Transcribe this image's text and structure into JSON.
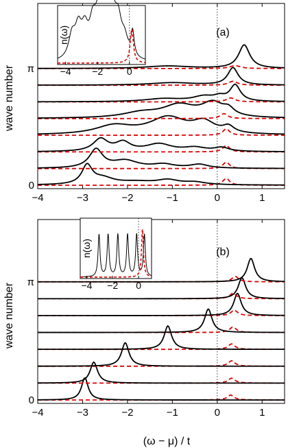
{
  "figure": {
    "ylabel": "wave number",
    "xlabel": "(ω − μ) / t"
  },
  "chart_data": [
    {
      "type": "line",
      "panel_label": "(a)",
      "xlim": [
        -4,
        1.5
      ],
      "x_ticks": [
        -4,
        -3,
        -2,
        -1,
        0,
        1
      ],
      "x_tick_labels": [
        "−4",
        "−3",
        "−2",
        "−1",
        "0",
        "1"
      ],
      "y_tick_labels": [
        "0",
        "π"
      ],
      "vertical_reference_line_x": 0,
      "colors": {
        "solid": "#000000",
        "dashed": "#e00000"
      },
      "series": [
        {
          "peaks": [
            [
              -2.9,
              0.75,
              0.14
            ],
            [
              -2.55,
              0.25,
              0.3
            ],
            [
              -1.8,
              0.12,
              0.5
            ],
            [
              -1.1,
              0.18,
              0.3
            ],
            [
              -0.5,
              0.1,
              0.3
            ]
          ],
          "dashed_peaks": [
            [
              0.2,
              0.28,
              0.09
            ]
          ]
        },
        {
          "peaks": [
            [
              -2.7,
              0.75,
              0.18
            ],
            [
              -2.05,
              0.3,
              0.35
            ],
            [
              -1.2,
              0.15,
              0.3
            ],
            [
              -0.4,
              0.15,
              0.25
            ]
          ],
          "dashed_peaks": [
            [
              0.2,
              0.26,
              0.09
            ]
          ]
        },
        {
          "peaks": [
            [
              -2.6,
              0.5,
              0.2
            ],
            [
              -2.1,
              0.35,
              0.2
            ],
            [
              -1.3,
              0.3,
              0.35
            ],
            [
              -0.5,
              0.15,
              0.3
            ],
            [
              0.1,
              0.15,
              0.2
            ]
          ],
          "dashed_peaks": [
            [
              0.2,
              0.26,
              0.09
            ]
          ]
        },
        {
          "peaks": [
            [
              -2.3,
              0.35,
              0.5
            ],
            [
              -1.1,
              0.68,
              0.5
            ],
            [
              -0.3,
              0.45,
              0.3
            ],
            [
              0.25,
              0.25,
              0.15
            ]
          ],
          "dashed_peaks": [
            [
              0.2,
              0.26,
              0.09
            ]
          ]
        },
        {
          "peaks": [
            [
              -1.7,
              0.2,
              0.5
            ],
            [
              -0.85,
              0.5,
              0.45
            ],
            [
              -0.1,
              0.55,
              0.3
            ],
            [
              0.25,
              0.25,
              0.15
            ]
          ],
          "dashed_peaks": [
            [
              0.15,
              0.2,
              0.1
            ]
          ]
        },
        {
          "peaks": [
            [
              -1.2,
              0.12,
              0.5
            ],
            [
              -0.3,
              0.2,
              0.3
            ],
            [
              0.4,
              0.65,
              0.14
            ],
            [
              0.05,
              0.15,
              0.15
            ]
          ],
          "dashed_peaks": [
            [
              0.3,
              0.16,
              0.12
            ]
          ]
        },
        {
          "peaks": [
            [
              -1.0,
              0.1,
              0.6
            ],
            [
              0.35,
              0.7,
              0.14
            ]
          ],
          "dashed_peaks": [
            [
              0.35,
              0.16,
              0.12
            ]
          ]
        },
        {
          "peaks": [
            [
              -1.1,
              0.1,
              0.6
            ],
            [
              0.6,
              0.95,
              0.15
            ]
          ],
          "dashed_peaks": [
            [
              0.4,
              0.12,
              0.14
            ]
          ]
        }
      ],
      "inset": {
        "ylabel": "n(ω)",
        "xlim": [
          -4.5,
          1.0
        ],
        "x_ticks": [
          -4,
          -2,
          0
        ],
        "x_tick_labels": [
          "−4",
          "−2",
          "0"
        ],
        "vertical_reference_line_x": 0,
        "solid_peaks": [
          [
            -3.6,
            0.4,
            0.25
          ],
          [
            -3.2,
            0.5,
            0.25
          ],
          [
            -2.8,
            0.45,
            0.25
          ],
          [
            -2.3,
            0.5,
            0.25
          ],
          [
            -1.9,
            0.65,
            0.3
          ],
          [
            -1.5,
            0.85,
            0.3
          ],
          [
            -1.1,
            0.7,
            0.3
          ],
          [
            -0.7,
            0.55,
            0.25
          ],
          [
            -0.3,
            0.3,
            0.25
          ],
          [
            0.2,
            0.45,
            0.12
          ]
        ],
        "dashed_peaks": [
          [
            0.15,
            0.62,
            0.12
          ]
        ]
      }
    },
    {
      "type": "line",
      "panel_label": "(b)",
      "xlim": [
        -4,
        1.5
      ],
      "x_ticks": [
        -4,
        -3,
        -2,
        -1,
        0,
        1
      ],
      "x_tick_labels": [
        "−4",
        "−3",
        "−2",
        "−1",
        "0",
        "1"
      ],
      "y_tick_labels": [
        "0",
        "π"
      ],
      "vertical_reference_line_x": 0,
      "colors": {
        "solid": "#000000",
        "dashed": "#e00000"
      },
      "series": [
        {
          "peaks": [
            [
              -2.95,
              0.9,
              0.09
            ]
          ],
          "dashed_peaks": [
            [
              0.3,
              0.2,
              0.09
            ]
          ]
        },
        {
          "peaks": [
            [
              -2.75,
              0.85,
              0.1
            ]
          ],
          "dashed_peaks": [
            [
              0.32,
              0.2,
              0.09
            ]
          ]
        },
        {
          "peaks": [
            [
              -2.05,
              0.95,
              0.1
            ]
          ],
          "dashed_peaks": [
            [
              0.32,
              0.22,
              0.09
            ]
          ]
        },
        {
          "peaks": [
            [
              -1.1,
              0.95,
              0.1
            ]
          ],
          "dashed_peaks": [
            [
              0.32,
              0.22,
              0.09
            ]
          ]
        },
        {
          "peaks": [
            [
              -0.2,
              0.95,
              0.1
            ]
          ],
          "dashed_peaks": [
            [
              0.35,
              0.22,
              0.09
            ]
          ]
        },
        {
          "peaks": [
            [
              0.45,
              0.9,
              0.1
            ]
          ],
          "dashed_peaks": [
            [
              0.38,
              0.22,
              0.09
            ]
          ]
        },
        {
          "peaks": [
            [
              0.55,
              0.85,
              0.1
            ]
          ],
          "dashed_peaks": [
            [
              0.35,
              0.22,
              0.09
            ]
          ]
        },
        {
          "peaks": [
            [
              0.75,
              0.95,
              0.1
            ]
          ],
          "dashed_peaks": [
            [
              0.4,
              0.22,
              0.09
            ]
          ]
        }
      ],
      "inset": {
        "ylabel": "n(ω)",
        "xlim": [
          -4.5,
          1.0
        ],
        "x_ticks": [
          -4,
          -2,
          0
        ],
        "x_tick_labels": [
          "−4",
          "−2",
          "0"
        ],
        "vertical_reference_line_x": 0,
        "solid_peaks": [
          [
            -3.05,
            0.75,
            0.09
          ],
          [
            -2.35,
            0.75,
            0.09
          ],
          [
            -1.6,
            0.75,
            0.09
          ],
          [
            -0.85,
            0.75,
            0.09
          ],
          [
            -0.15,
            0.75,
            0.09
          ],
          [
            0.45,
            0.75,
            0.09
          ]
        ],
        "dashed_peaks": [
          [
            0.3,
            0.85,
            0.09
          ]
        ]
      }
    }
  ]
}
